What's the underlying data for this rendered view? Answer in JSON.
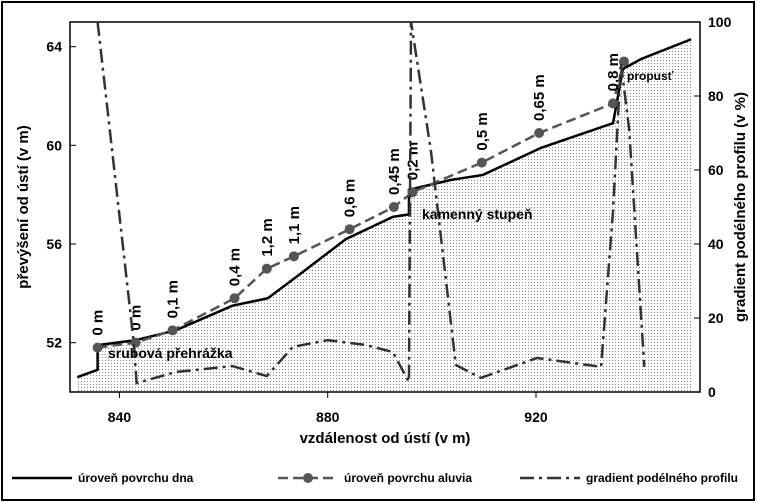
{
  "chart_data": {
    "type": "line",
    "xlabel": "vzdálenost od ústí (v m)",
    "ylabel": "převýšení od ústí (v m)",
    "y2label": "gradient podélného profilu (v %)",
    "xlim": [
      830.5,
      951.5
    ],
    "xticks": [
      840,
      880,
      920
    ],
    "ylim": [
      50,
      65
    ],
    "yticks": [
      52,
      56,
      60,
      64
    ],
    "y2lim": [
      0,
      100
    ],
    "y2ticks": [
      0,
      20,
      40,
      60,
      80,
      100
    ],
    "legend": "bottom",
    "series": [
      {
        "name": "úroveň povrchu dna",
        "color": "#000000",
        "style": "solid",
        "fill_below": true,
        "x": [
          831.9,
          835.8,
          835.8,
          843.1,
          850.8,
          861.7,
          868.5,
          874.8,
          883.5,
          892.5,
          895.6,
          895.6,
          903.7,
          909.8,
          921.0,
          934.8,
          936.7,
          940.2,
          949.8
        ],
        "values": [
          50.6,
          50.9,
          51.9,
          52.1,
          52.5,
          53.5,
          53.8,
          54.8,
          56.2,
          57.1,
          57.2,
          58.2,
          58.6,
          58.8,
          59.9,
          60.9,
          63.1,
          63.5,
          64.3
        ]
      },
      {
        "name": "úroveň povrchu aluvia",
        "color": "#555555",
        "style": "dashed",
        "markers": true,
        "x": [
          835.8,
          843.1,
          850.2,
          862.1,
          868.3,
          873.5,
          884.2,
          892.7,
          896.3,
          909.6,
          920.6,
          934.8,
          936.9
        ],
        "values": [
          51.8,
          52.0,
          52.5,
          53.8,
          55.0,
          55.5,
          56.6,
          57.5,
          58.1,
          59.3,
          60.5,
          61.7,
          63.4
        ],
        "point_labels": [
          "0 m",
          "0 m",
          "0,1 m",
          "0,4 m",
          "1,2 m",
          "1,1 m",
          "0,6 m",
          "0,45 m",
          "0,2 m",
          "0,5 m",
          "0,65 m",
          "0,8 m",
          null
        ]
      },
      {
        "name": "gradient podélného profilu",
        "color": "#333333",
        "style": "dashdot",
        "axis": "y2",
        "x": [
          835.8,
          842.7,
          843.3,
          850.8,
          861.7,
          868.3,
          873.3,
          880.0,
          887.3,
          892.5,
          895.6,
          896.0,
          899.8,
          904.6,
          909.4,
          920.2,
          932.5,
          934.8,
          936.3,
          937.9,
          940.8
        ],
        "values": [
          100,
          14,
          2.4,
          5.4,
          7,
          4.3,
          12.2,
          14,
          12.7,
          10.8,
          2.7,
          100,
          65.4,
          7.3,
          3.8,
          9.2,
          6.8,
          49,
          89,
          71,
          6.8
        ]
      }
    ],
    "annotations": [
      "srubová přehrážka",
      "kamenný stupeň",
      "propusť"
    ]
  }
}
